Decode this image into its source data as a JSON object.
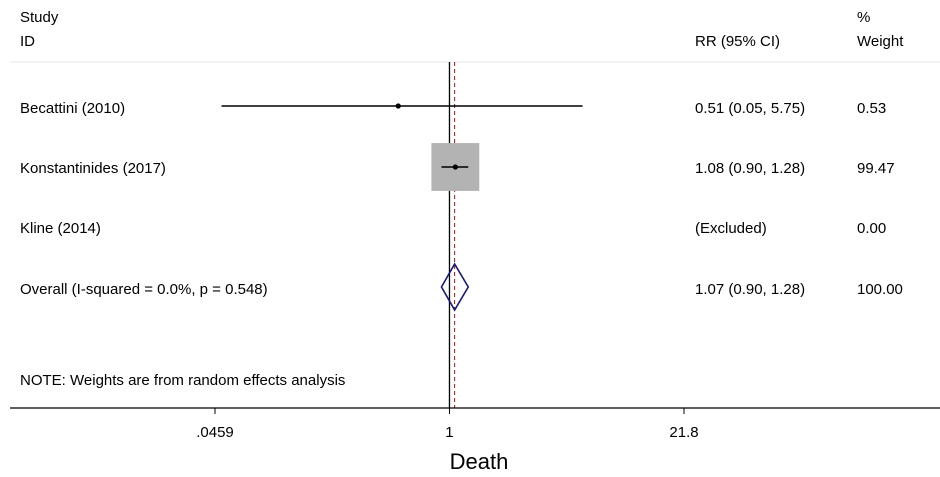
{
  "chart_data": {
    "type": "forest",
    "title": "",
    "xlabel": "Death",
    "scale": "log",
    "xlim": [
      0.0459,
      21.8
    ],
    "null_value": 1,
    "overall_effect": 1.07,
    "x_ticks": [
      {
        "value": 0.0459,
        "label": ".0459"
      },
      {
        "value": 1,
        "label": "1"
      },
      {
        "value": 21.8,
        "label": "21.8"
      }
    ],
    "headers": {
      "study": [
        "Study",
        "ID"
      ],
      "ci": "RR (95% CI)",
      "weight": [
        "%",
        "Weight"
      ]
    },
    "studies": [
      {
        "label": "Becattini (2010)",
        "rr": 0.51,
        "lower": 0.05,
        "upper": 5.75,
        "ci_text": "0.51 (0.05, 5.75)",
        "weight": 0.53,
        "weight_text": "0.53"
      },
      {
        "label": "Konstantinides (2017)",
        "rr": 1.08,
        "lower": 0.9,
        "upper": 1.28,
        "ci_text": "1.08 (0.90, 1.28)",
        "weight": 99.47,
        "weight_text": "99.47"
      },
      {
        "label": "Kline (2014)",
        "rr": null,
        "lower": null,
        "upper": null,
        "ci_text": "(Excluded)",
        "weight": 0.0,
        "weight_text": "0.00"
      }
    ],
    "overall": {
      "label": "Overall  (I-squared = 0.0%, p = 0.548)",
      "rr": 1.07,
      "lower": 0.9,
      "upper": 1.28,
      "ci_text": "1.07 (0.90, 1.28)",
      "weight_text": "100.00"
    },
    "note": "NOTE: Weights are from random effects analysis",
    "colors": {
      "box": "#b3b3b3",
      "diamond": "#1a1a6e",
      "overall_line": "#8b1a1a",
      "line": "#000000"
    }
  }
}
